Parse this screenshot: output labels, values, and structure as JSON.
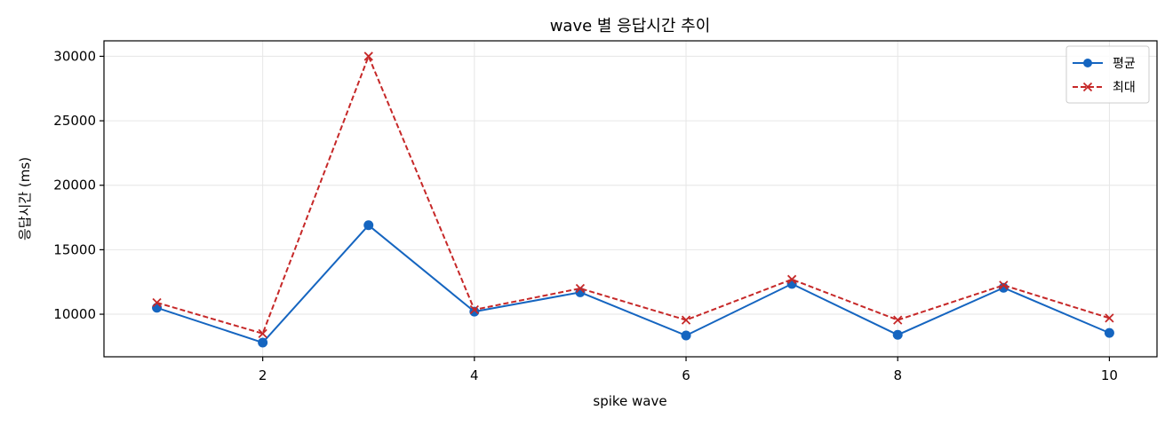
{
  "chart_data": {
    "type": "line",
    "title": "wave 별 응답시간 추이",
    "xlabel": "spike wave",
    "ylabel": "응답시간 (ms)",
    "x": [
      1,
      2,
      3,
      4,
      5,
      6,
      7,
      8,
      9,
      10
    ],
    "xlim": [
      0.5,
      10.45
    ],
    "ylim": [
      6700,
      31200
    ],
    "xticks": [
      2,
      4,
      6,
      8,
      10
    ],
    "yticks": [
      10000,
      15000,
      20000,
      25000,
      30000
    ],
    "grid": true,
    "legend_position": "top-right",
    "series": [
      {
        "name": "평균",
        "marker": "circle",
        "line_style": "solid",
        "color": "#1565c0",
        "values": [
          10500,
          7800,
          16900,
          10200,
          11700,
          8350,
          12350,
          8400,
          12050,
          8550
        ]
      },
      {
        "name": "최대",
        "marker": "x",
        "line_style": "dashed",
        "color": "#c62828",
        "values": [
          10900,
          8500,
          30000,
          10350,
          12000,
          9550,
          12700,
          9550,
          12250,
          9700
        ]
      }
    ]
  }
}
